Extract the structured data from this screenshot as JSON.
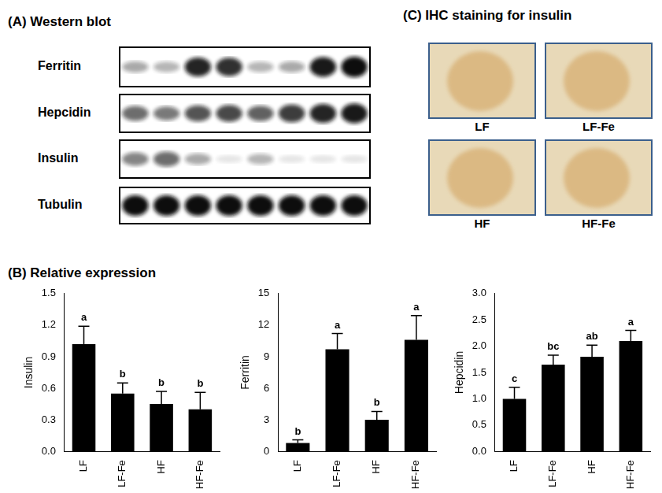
{
  "western_blot": {
    "title": "(A) Western blot",
    "rows": [
      {
        "label": "Ferritin",
        "intensity": [
          0.35,
          0.3,
          0.9,
          0.85,
          0.3,
          0.35,
          0.95,
          1.0
        ]
      },
      {
        "label": "Hepcidin",
        "intensity": [
          0.6,
          0.55,
          0.7,
          0.75,
          0.65,
          0.8,
          0.9,
          0.95
        ]
      },
      {
        "label": "Insulin",
        "intensity": [
          0.5,
          0.6,
          0.35,
          0.1,
          0.3,
          0.1,
          0.1,
          0.1
        ]
      },
      {
        "label": "Tubulin",
        "intensity": [
          1.0,
          1.0,
          1.0,
          1.0,
          1.0,
          1.0,
          1.0,
          1.0
        ]
      }
    ]
  },
  "ihc": {
    "title": "(C) IHC staining for insulin",
    "panels": [
      "LF",
      "LF-Fe",
      "HF",
      "HF-Fe"
    ]
  },
  "panel_b_title": "(B) Relative expression",
  "chart_data": [
    {
      "type": "bar",
      "y_label": "Insulin",
      "categories": [
        "LF",
        "LF-Fe",
        "HF",
        "HF-Fe"
      ],
      "values": [
        1.02,
        0.55,
        0.45,
        0.4
      ],
      "errors": [
        0.17,
        0.1,
        0.12,
        0.16
      ],
      "significance_letters": [
        "a",
        "b",
        "b",
        "b"
      ],
      "color": "#000000",
      "ylim": [
        0,
        1.5
      ],
      "yticks": [
        {
          "value": 0,
          "label": "0.0"
        },
        0.3,
        0.6,
        0.9,
        1.2,
        1.5
      ],
      "grid": false
    },
    {
      "type": "bar",
      "y_label": "Ferritin",
      "categories": [
        "LF",
        "LF-Fe",
        "HF",
        "HF-Fe"
      ],
      "values": [
        0.8,
        9.7,
        3.0,
        10.6
      ],
      "errors": [
        0.3,
        1.5,
        0.8,
        2.3
      ],
      "significance_letters": [
        "b",
        "a",
        "b",
        "a"
      ],
      "color": "#000000",
      "ylim": [
        0,
        15
      ],
      "yticks": [
        0,
        3,
        6,
        9,
        12,
        15
      ],
      "grid": false
    },
    {
      "type": "bar",
      "y_label": "Hepcidin",
      "categories": [
        "LF",
        "LF-Fe",
        "HF",
        "HF-Fe"
      ],
      "values": [
        1.0,
        1.65,
        1.8,
        2.1
      ],
      "errors": [
        0.22,
        0.18,
        0.22,
        0.2
      ],
      "significance_letters": [
        "c",
        "bc",
        "ab",
        "a"
      ],
      "color": "#000000",
      "ylim": [
        0,
        3
      ],
      "yticks": [
        {
          "value": 0,
          "label": "0.0"
        },
        0.5,
        {
          "value": 1,
          "label": "1.0"
        },
        1.5,
        {
          "value": 2,
          "label": "2.0"
        },
        2.5,
        {
          "value": 3,
          "label": "3.0"
        }
      ],
      "grid": false
    }
  ]
}
